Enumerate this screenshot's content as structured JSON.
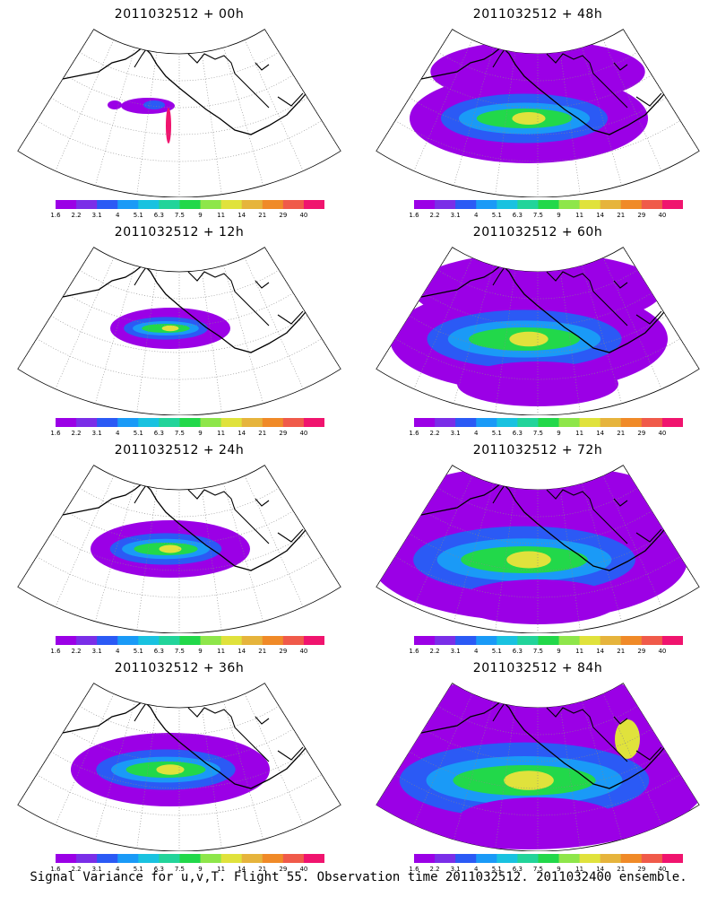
{
  "panels": [
    {
      "title": "2011032512 + 00h",
      "spread": 0
    },
    {
      "title": "2011032512 + 48h",
      "spread": 4
    },
    {
      "title": "2011032512 + 12h",
      "spread": 1
    },
    {
      "title": "2011032512 + 60h",
      "spread": 5
    },
    {
      "title": "2011032512 + 24h",
      "spread": 2
    },
    {
      "title": "2011032512 + 72h",
      "spread": 6
    },
    {
      "title": "2011032512 + 36h",
      "spread": 3
    },
    {
      "title": "2011032512 + 84h",
      "spread": 7
    }
  ],
  "colorbar": {
    "labels": [
      "1.6",
      "2.2",
      "3.1",
      "4",
      "5.1",
      "6.3",
      "7.5",
      "9",
      "11",
      "14",
      "21",
      "29",
      "40"
    ],
    "colors": [
      "#9b00e6",
      "#7a2ee8",
      "#2b5af5",
      "#1a9af7",
      "#19c2e0",
      "#22d49a",
      "#22d84a",
      "#8ee64a",
      "#e0e23c",
      "#e6b43c",
      "#f08a28",
      "#f05a4a",
      "#f0146e"
    ]
  },
  "footer": "Signal Variance for u,v,T. Flight 55. Observation time 2011032512. 2011032400 ensemble."
}
